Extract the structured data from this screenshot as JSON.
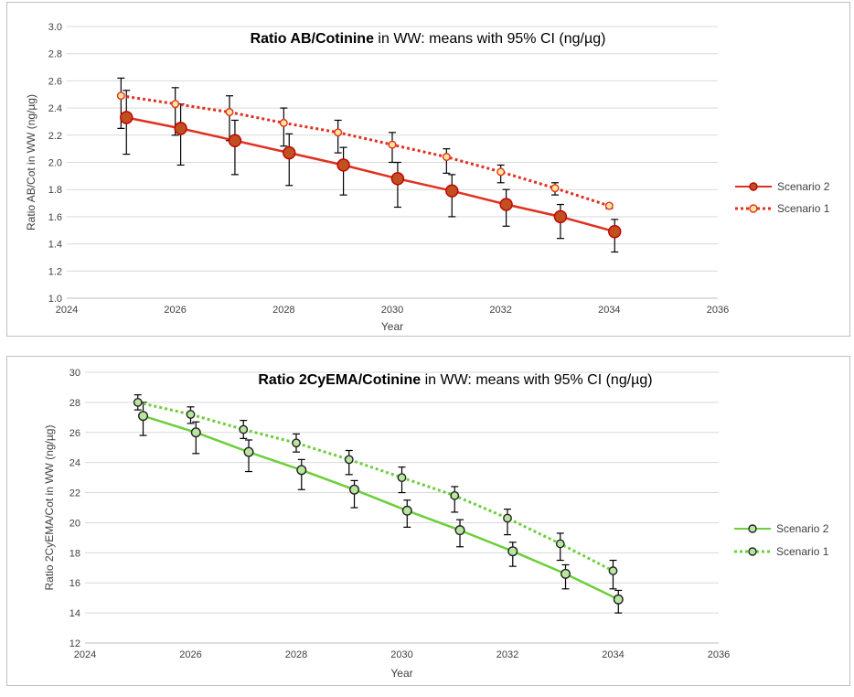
{
  "chart_data": [
    {
      "type": "line",
      "title_bold": "Ratio AB/Cotinine",
      "title_rest": " in WW: means with 95% CI (ng/µg)",
      "xlabel": "Year",
      "ylabel": "Ratio AB/Cot in WW (ng/µg)",
      "xlim": [
        2024,
        2036
      ],
      "xticks": [
        2024,
        2026,
        2028,
        2030,
        2032,
        2034,
        2036
      ],
      "ylim": [
        1.0,
        3.0
      ],
      "yticks": [
        "1.0",
        "1.2",
        "1.4",
        "1.6",
        "1.8",
        "2.0",
        "2.2",
        "2.4",
        "2.6",
        "2.8",
        "3.0"
      ],
      "grid": "horizontal",
      "legend_position": "right",
      "series": [
        {
          "name": "Scenario 2",
          "style": "solid",
          "color": "#e03020",
          "marker_fill": "#c0501f",
          "marker_stroke": "#c00000",
          "x": [
            2025.1,
            2026.1,
            2027.1,
            2028.1,
            2029.1,
            2030.1,
            2031.1,
            2032.1,
            2033.1,
            2034.1
          ],
          "y": [
            2.33,
            2.25,
            2.16,
            2.07,
            1.98,
            1.88,
            1.79,
            1.69,
            1.6,
            1.49
          ],
          "ci_low": [
            2.06,
            1.98,
            1.91,
            1.83,
            1.76,
            1.67,
            1.6,
            1.53,
            1.44,
            1.34
          ],
          "ci_high": [
            2.53,
            2.43,
            2.31,
            2.21,
            2.11,
            2.0,
            1.91,
            1.8,
            1.69,
            1.58
          ]
        },
        {
          "name": "Scenario 1",
          "style": "dotted",
          "color": "#e03020",
          "marker_fill": "#ffe699",
          "marker_stroke": "#e03020",
          "x": [
            2025,
            2026,
            2027,
            2028,
            2029,
            2030,
            2031,
            2032,
            2033,
            2034
          ],
          "y": [
            2.49,
            2.43,
            2.37,
            2.29,
            2.22,
            2.13,
            2.04,
            1.93,
            1.81,
            1.68
          ],
          "ci_low": [
            2.25,
            2.2,
            2.16,
            2.12,
            2.07,
            2.0,
            1.92,
            1.85,
            1.76,
            1.66
          ],
          "ci_high": [
            2.62,
            2.55,
            2.49,
            2.4,
            2.31,
            2.22,
            2.1,
            1.98,
            1.85,
            1.69
          ]
        }
      ]
    },
    {
      "type": "line",
      "title_bold": "Ratio 2CyEMA/Cotinine",
      "title_rest": " in WW: means with 95% CI (ng/µg)",
      "xlabel": "Year",
      "ylabel": "Ratio 2CyEMA/Cot in WW (ng/µg)",
      "xlim": [
        2024,
        2036
      ],
      "xticks": [
        2024,
        2026,
        2028,
        2030,
        2032,
        2034,
        2036
      ],
      "ylim": [
        12,
        30
      ],
      "yticks": [
        "12",
        "14",
        "16",
        "18",
        "20",
        "22",
        "24",
        "26",
        "28",
        "30"
      ],
      "grid": "horizontal",
      "legend_position": "right",
      "series": [
        {
          "name": "Scenario 2",
          "style": "solid",
          "color": "#6ccf3a",
          "marker_fill": "#b8e6a0",
          "marker_stroke": "#222222",
          "x": [
            2025.1,
            2026.1,
            2027.1,
            2028.1,
            2029.1,
            2030.1,
            2031.1,
            2032.1,
            2033.1,
            2034.1
          ],
          "y": [
            27.1,
            26.0,
            24.7,
            23.5,
            22.2,
            20.8,
            19.5,
            18.1,
            16.6,
            14.9
          ],
          "ci_low": [
            25.8,
            24.6,
            23.4,
            22.2,
            21.0,
            19.7,
            18.4,
            17.1,
            15.6,
            14.0
          ],
          "ci_high": [
            28.0,
            26.7,
            25.5,
            24.2,
            22.8,
            21.5,
            20.2,
            18.7,
            17.2,
            15.5
          ]
        },
        {
          "name": "Scenario 1",
          "style": "dotted",
          "color": "#6ccf3a",
          "marker_fill": "#b8e6a0",
          "marker_stroke": "#222222",
          "x": [
            2025,
            2026,
            2027,
            2028,
            2029,
            2030,
            2031,
            2032,
            2033,
            2034
          ],
          "y": [
            28.0,
            27.2,
            26.2,
            25.3,
            24.2,
            23.0,
            21.8,
            20.3,
            18.6,
            16.8
          ],
          "ci_low": [
            27.5,
            26.6,
            25.6,
            24.7,
            23.2,
            22.0,
            20.7,
            19.2,
            17.5,
            15.6
          ],
          "ci_high": [
            28.5,
            27.7,
            26.8,
            25.9,
            24.8,
            23.7,
            22.4,
            20.9,
            19.3,
            17.5
          ]
        }
      ]
    }
  ]
}
